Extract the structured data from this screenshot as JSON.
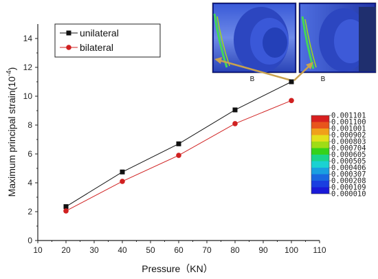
{
  "chart_data": {
    "type": "line",
    "xlabel": "Pressure（KN）",
    "ylabel": "Maximum principal strain(10",
    "ylabel_exponent": "-4",
    "ylabel_suffix": ")",
    "xlim": [
      10,
      110
    ],
    "ylim": [
      0,
      15
    ],
    "x_ticks": [
      "10",
      "20",
      "30",
      "40",
      "50",
      "60",
      "70",
      "80",
      "90",
      "100",
      "110"
    ],
    "y_ticks": [
      "0",
      "2",
      "4",
      "6",
      "8",
      "10",
      "12",
      "14"
    ],
    "legend_position": "top-left",
    "grid": false,
    "series": [
      {
        "name": "unilateral",
        "color": "#111111",
        "marker": "square",
        "x": [
          20,
          40,
          60,
          80,
          100
        ],
        "y": [
          2.35,
          4.75,
          6.7,
          9.05,
          11.0
        ]
      },
      {
        "name": "bilateral",
        "color": "#d02020",
        "marker": "circle",
        "x": [
          20,
          40,
          60,
          80,
          100
        ],
        "y": [
          2.05,
          4.1,
          5.9,
          8.1,
          9.7
        ]
      }
    ],
    "colorbar": {
      "labels": [
        "0.001101",
        "0.001100",
        "0.001001",
        "0.000902",
        "0.000803",
        "0.000704",
        "0.000605",
        "0.000505",
        "0.000406",
        "0.000307",
        "0.000208",
        "0.000109",
        "0.000010"
      ],
      "colors": [
        "#d81f1f",
        "#e8541c",
        "#f0a01a",
        "#e3e01b",
        "#9fdc16",
        "#35d21a",
        "#1ad48a",
        "#1ad2d2",
        "#1a9fe0",
        "#1a68e0",
        "#1a3fe0",
        "#1a1ad8"
      ]
    },
    "insets": [
      {
        "label": "B"
      },
      {
        "label": "B"
      }
    ]
  }
}
